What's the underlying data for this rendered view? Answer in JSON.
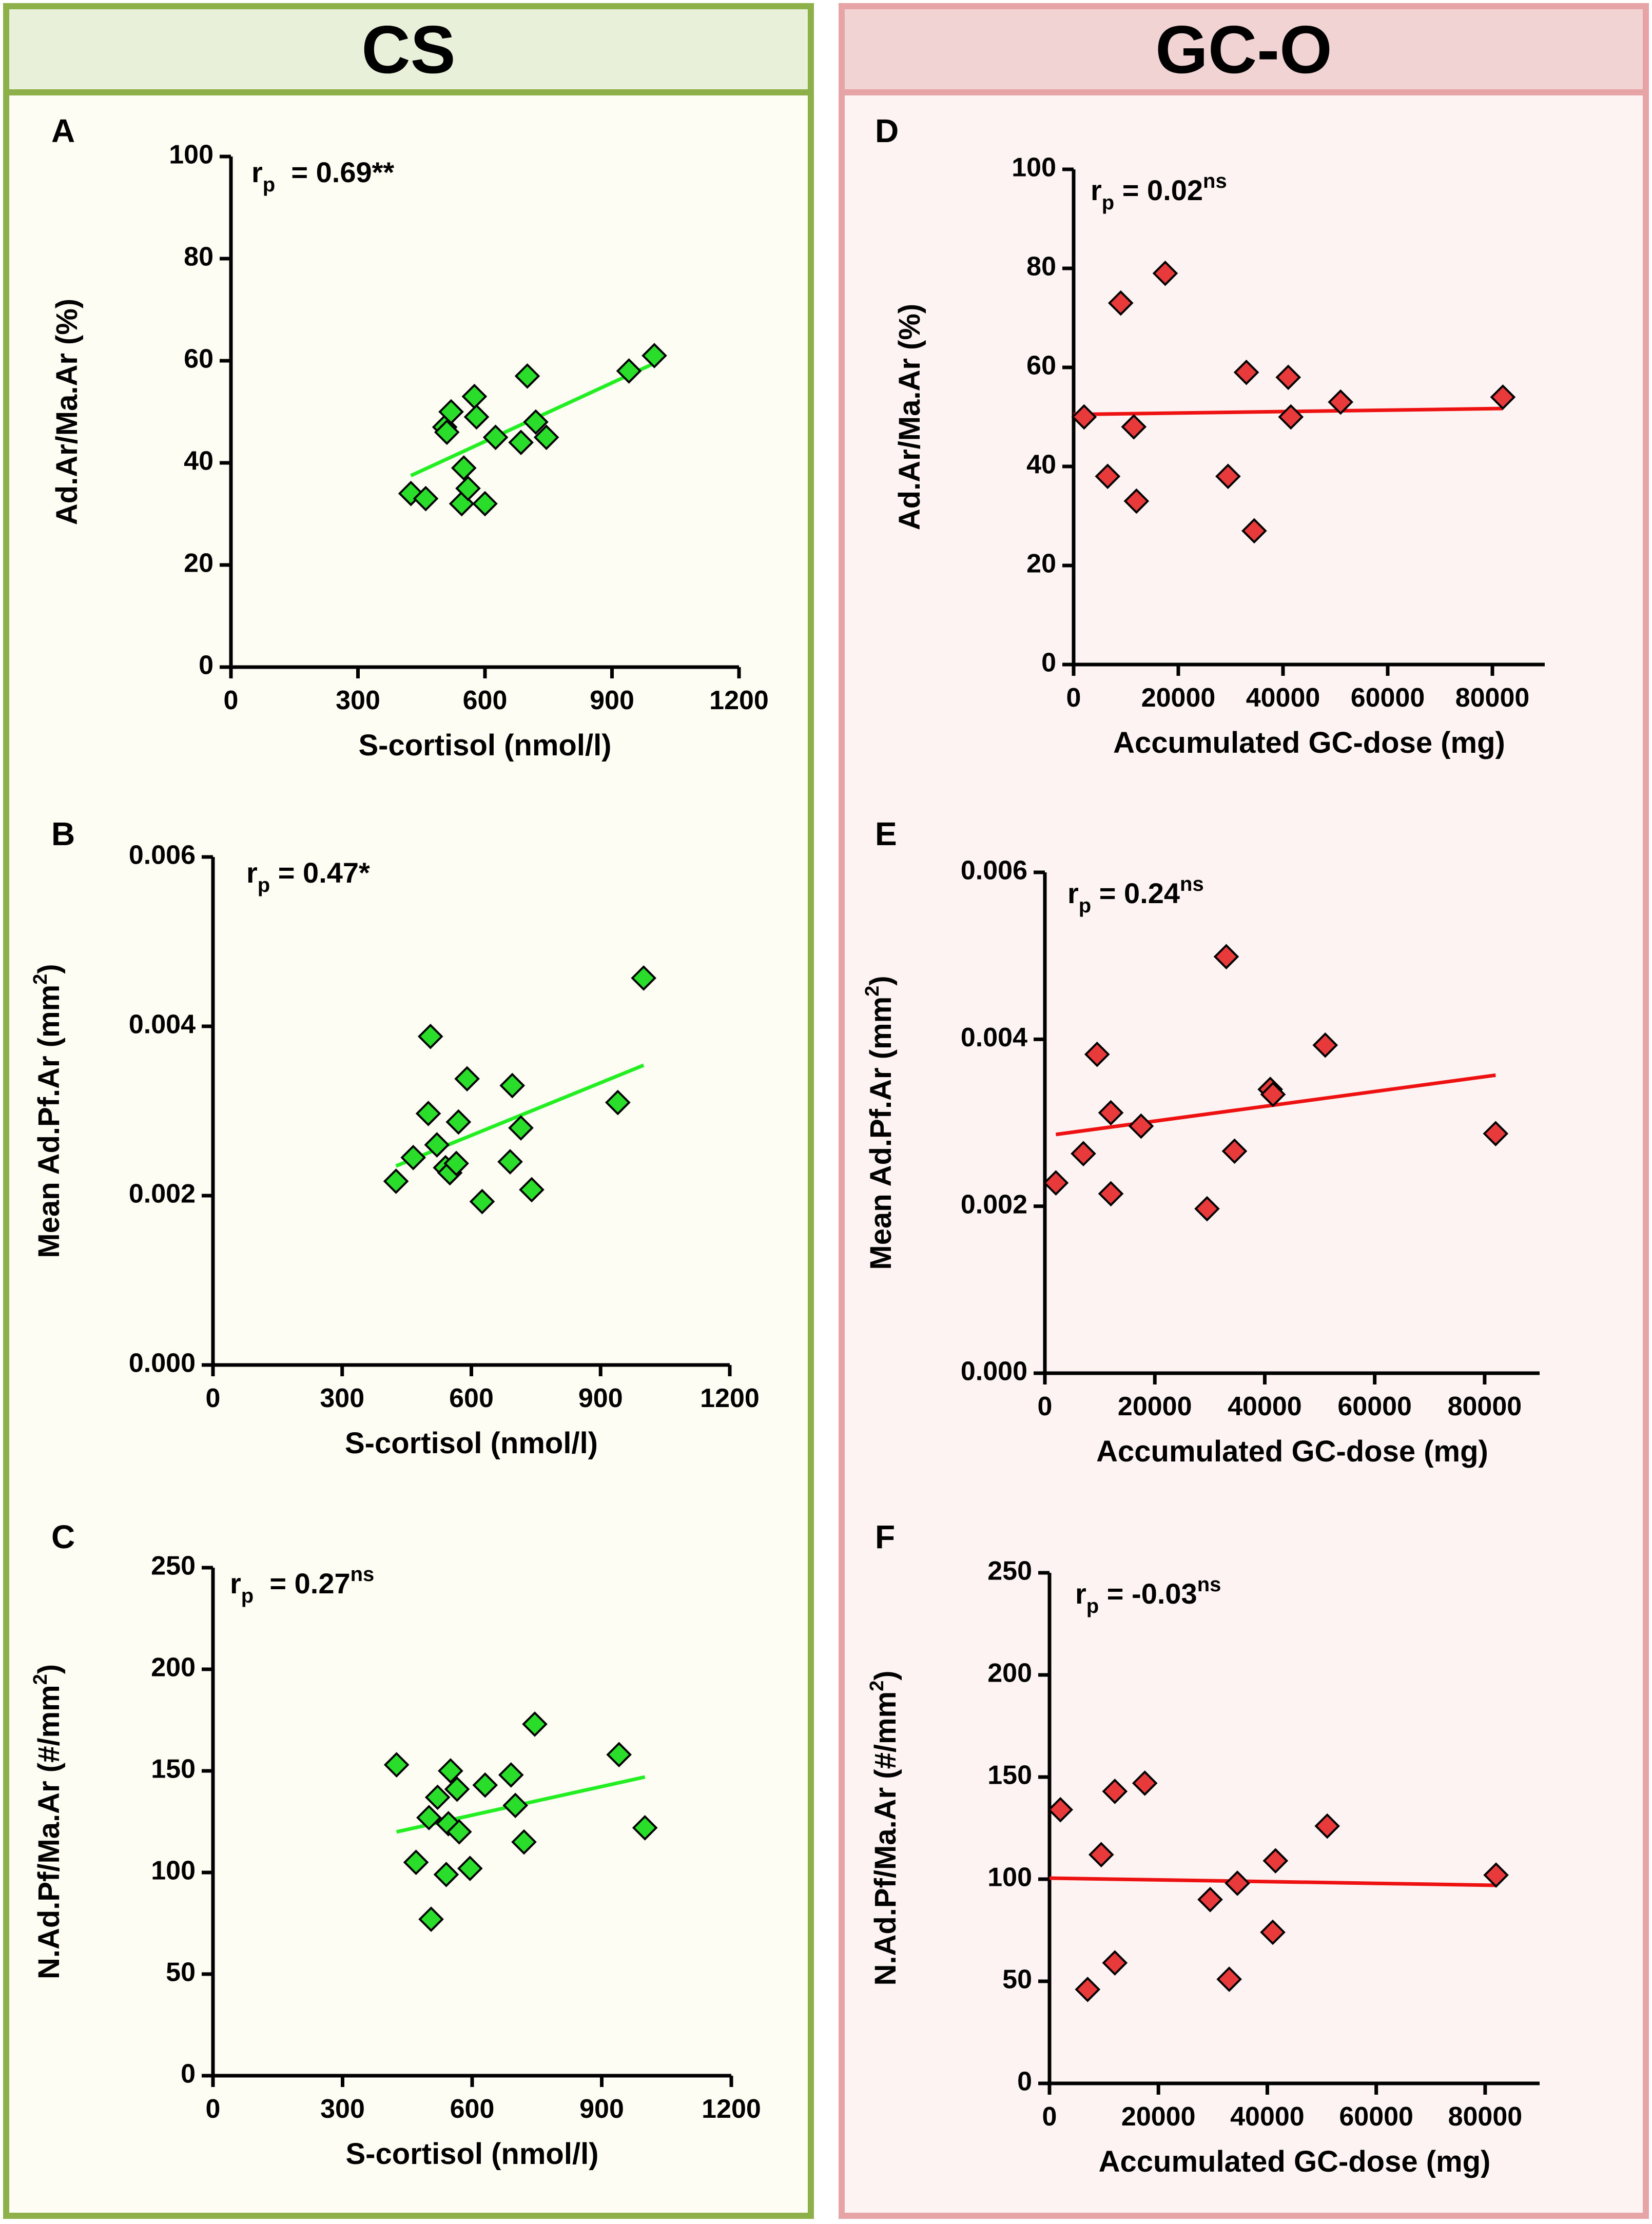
{
  "colors": {
    "cs_border": "#8db04b",
    "cs_header_bg": "#e8f0da",
    "cs_body_bg": "#fdfdf3",
    "gco_border": "#e6a4a6",
    "gco_header_bg": "#f2d3d4",
    "gco_body_bg": "#fdf3f3",
    "cs_marker": "#2bdd2b",
    "cs_line": "#22ee22",
    "gco_marker": "#e83a3a",
    "gco_line": "#ee1111"
  },
  "groups": {
    "cs": {
      "title": "CS"
    },
    "gco": {
      "title": "GC-O"
    }
  },
  "chart_data": [
    {
      "id": "A",
      "type": "scatter",
      "group": "cs",
      "panel_label": "A",
      "title": "",
      "xlabel": "S-cortisol (nmol/l)",
      "ylabel": "Ad.Ar/Ma.Ar (%)",
      "annotation": {
        "r": "r",
        "sub": "p",
        "value": "  = 0.69**",
        "sup": ""
      },
      "xlim": [
        0,
        1200
      ],
      "ylim": [
        0,
        100
      ],
      "xticks": [
        0,
        300,
        600,
        900,
        1200
      ],
      "xtick_labels": [
        "0",
        "300",
        "600",
        "900",
        "1200"
      ],
      "yticks": [
        0,
        20,
        40,
        60,
        80,
        100
      ],
      "ytick_labels": [
        "0",
        "20",
        "40",
        "60",
        "80",
        "100"
      ],
      "points": [
        [
          425,
          34
        ],
        [
          460,
          33
        ],
        [
          505,
          47
        ],
        [
          510,
          46
        ],
        [
          520,
          50
        ],
        [
          545,
          32
        ],
        [
          550,
          39
        ],
        [
          560,
          35
        ],
        [
          575,
          53
        ],
        [
          580,
          49
        ],
        [
          600,
          32
        ],
        [
          625,
          45
        ],
        [
          685,
          44
        ],
        [
          700,
          57
        ],
        [
          720,
          48
        ],
        [
          745,
          45
        ],
        [
          940,
          58
        ],
        [
          1000,
          61
        ]
      ],
      "fit": [
        [
          425,
          37.5
        ],
        [
          1000,
          59.5
        ]
      ]
    },
    {
      "id": "B",
      "type": "scatter",
      "group": "cs",
      "panel_label": "B",
      "title": "",
      "xlabel": "S-cortisol (nmol/l)",
      "ylabel": "Mean Ad.Pf.Ar (mm",
      "ylabel_sup": "2",
      "ylabel_tail": ")",
      "annotation": {
        "r": "r",
        "sub": "p",
        "value": " = 0.47*",
        "sup": ""
      },
      "xlim": [
        0,
        1200
      ],
      "ylim": [
        0,
        0.006
      ],
      "xticks": [
        0,
        300,
        600,
        900,
        1200
      ],
      "xtick_labels": [
        "0",
        "300",
        "600",
        "900",
        "1200"
      ],
      "yticks": [
        0,
        0.002,
        0.004,
        0.006
      ],
      "ytick_labels": [
        "0.000",
        "0.002",
        "0.004",
        "0.006"
      ],
      "points": [
        [
          425,
          0.00217
        ],
        [
          465,
          0.00245
        ],
        [
          500,
          0.00297
        ],
        [
          505,
          0.00388
        ],
        [
          520,
          0.0026
        ],
        [
          540,
          0.00233
        ],
        [
          550,
          0.00227
        ],
        [
          565,
          0.00238
        ],
        [
          570,
          0.00287
        ],
        [
          590,
          0.00338
        ],
        [
          625,
          0.00193
        ],
        [
          690,
          0.0024
        ],
        [
          695,
          0.0033
        ],
        [
          715,
          0.0028
        ],
        [
          740,
          0.00207
        ],
        [
          940,
          0.0031
        ],
        [
          1000,
          0.00457
        ]
      ],
      "fit": [
        [
          425,
          0.00235
        ],
        [
          1000,
          0.00354
        ]
      ]
    },
    {
      "id": "C",
      "type": "scatter",
      "group": "cs",
      "panel_label": "C",
      "title": "",
      "xlabel": "S-cortisol (nmol/l)",
      "ylabel": "N.Ad.Pf/Ma.Ar (#/mm",
      "ylabel_sup": "2",
      "ylabel_tail": ")",
      "annotation": {
        "r": "r",
        "sub": "p",
        "value": "  = 0.27",
        "sup": "ns"
      },
      "xlim": [
        0,
        1200
      ],
      "ylim": [
        0,
        250
      ],
      "xticks": [
        0,
        300,
        600,
        900,
        1200
      ],
      "xtick_labels": [
        "0",
        "300",
        "600",
        "900",
        "1200"
      ],
      "yticks": [
        0,
        50,
        100,
        150,
        200,
        250
      ],
      "ytick_labels": [
        "0",
        "50",
        "100",
        "150",
        "200",
        "250"
      ],
      "points": [
        [
          425,
          153
        ],
        [
          470,
          105
        ],
        [
          500,
          127
        ],
        [
          505,
          77
        ],
        [
          520,
          137
        ],
        [
          540,
          99
        ],
        [
          545,
          124
        ],
        [
          550,
          150
        ],
        [
          565,
          141
        ],
        [
          570,
          120
        ],
        [
          595,
          102
        ],
        [
          630,
          143
        ],
        [
          690,
          148
        ],
        [
          700,
          133
        ],
        [
          720,
          115
        ],
        [
          745,
          173
        ],
        [
          940,
          158
        ],
        [
          1000,
          122
        ]
      ],
      "fit": [
        [
          425,
          120
        ],
        [
          1000,
          147
        ]
      ]
    },
    {
      "id": "D",
      "type": "scatter",
      "group": "gco",
      "panel_label": "D",
      "title": "",
      "xlabel": "Accumulated GC-dose (mg)",
      "ylabel": "Ad.Ar/Ma.Ar (%)",
      "annotation": {
        "r": "r",
        "sub": "p",
        "value": " = 0.02",
        "sup": "ns"
      },
      "xlim": [
        0,
        90000
      ],
      "ylim": [
        0,
        100
      ],
      "xticks": [
        0,
        20000,
        40000,
        60000,
        80000
      ],
      "xtick_labels": [
        "0",
        "20000",
        "40000",
        "60000",
        "80000"
      ],
      "yticks": [
        0,
        20,
        40,
        60,
        80,
        100
      ],
      "ytick_labels": [
        "0",
        "20",
        "40",
        "60",
        "80",
        "100"
      ],
      "points": [
        [
          2000,
          50
        ],
        [
          6500,
          38
        ],
        [
          9000,
          73
        ],
        [
          11500,
          48
        ],
        [
          12000,
          33
        ],
        [
          17500,
          79
        ],
        [
          29500,
          38
        ],
        [
          33000,
          59
        ],
        [
          34500,
          27
        ],
        [
          41000,
          58
        ],
        [
          41500,
          50
        ],
        [
          51000,
          53
        ],
        [
          82000,
          54
        ]
      ],
      "fit": [
        [
          0,
          50.5
        ],
        [
          82000,
          51.7
        ]
      ]
    },
    {
      "id": "E",
      "type": "scatter",
      "group": "gco",
      "panel_label": "E",
      "title": "",
      "xlabel": "Accumulated GC-dose (mg)",
      "ylabel": "Mean Ad.Pf.Ar (mm",
      "ylabel_sup": "2",
      "ylabel_tail": ")",
      "annotation": {
        "r": "r",
        "sub": "p",
        "value": " = 0.24",
        "sup": "ns"
      },
      "xlim": [
        0,
        90000
      ],
      "ylim": [
        0,
        0.006
      ],
      "xticks": [
        0,
        20000,
        40000,
        60000,
        80000
      ],
      "xtick_labels": [
        "0",
        "20000",
        "40000",
        "60000",
        "80000"
      ],
      "yticks": [
        0,
        0.002,
        0.004,
        0.006
      ],
      "ytick_labels": [
        "0.000",
        "0.002",
        "0.004",
        "0.006"
      ],
      "points": [
        [
          2000,
          0.00228
        ],
        [
          7000,
          0.00263
        ],
        [
          9500,
          0.00382
        ],
        [
          12000,
          0.00312
        ],
        [
          12000,
          0.00215
        ],
        [
          17500,
          0.00296
        ],
        [
          29500,
          0.00197
        ],
        [
          33000,
          0.00499
        ],
        [
          34500,
          0.00266
        ],
        [
          41000,
          0.0034
        ],
        [
          41500,
          0.00334
        ],
        [
          51000,
          0.00393
        ],
        [
          82000,
          0.00287
        ]
      ],
      "fit": [
        [
          2000,
          0.00286
        ],
        [
          82000,
          0.00357
        ]
      ]
    },
    {
      "id": "F",
      "type": "scatter",
      "group": "gco",
      "panel_label": "F",
      "title": "",
      "xlabel": "Accumulated GC-dose (mg)",
      "ylabel": "N.Ad.Pf/Ma.Ar (#/mm",
      "ylabel_sup": "2",
      "ylabel_tail": ")",
      "annotation": {
        "r": "r",
        "sub": "p",
        "value": " = -0.03",
        "sup": "ns"
      },
      "xlim": [
        0,
        90000
      ],
      "ylim": [
        0,
        250
      ],
      "xticks": [
        0,
        20000,
        40000,
        60000,
        80000
      ],
      "xtick_labels": [
        "0",
        "20000",
        "40000",
        "60000",
        "80000"
      ],
      "yticks": [
        0,
        50,
        100,
        150,
        200,
        250
      ],
      "ytick_labels": [
        "0",
        "50",
        "100",
        "150",
        "200",
        "250"
      ],
      "points": [
        [
          2000,
          134
        ],
        [
          7000,
          46
        ],
        [
          9500,
          112
        ],
        [
          12000,
          59
        ],
        [
          12000,
          143
        ],
        [
          17500,
          147
        ],
        [
          29500,
          90
        ],
        [
          33000,
          51
        ],
        [
          34500,
          98
        ],
        [
          41000,
          74
        ],
        [
          41500,
          109
        ],
        [
          51000,
          126
        ],
        [
          82000,
          102
        ]
      ],
      "fit": [
        [
          0,
          100.5
        ],
        [
          82000,
          97
        ]
      ]
    }
  ]
}
